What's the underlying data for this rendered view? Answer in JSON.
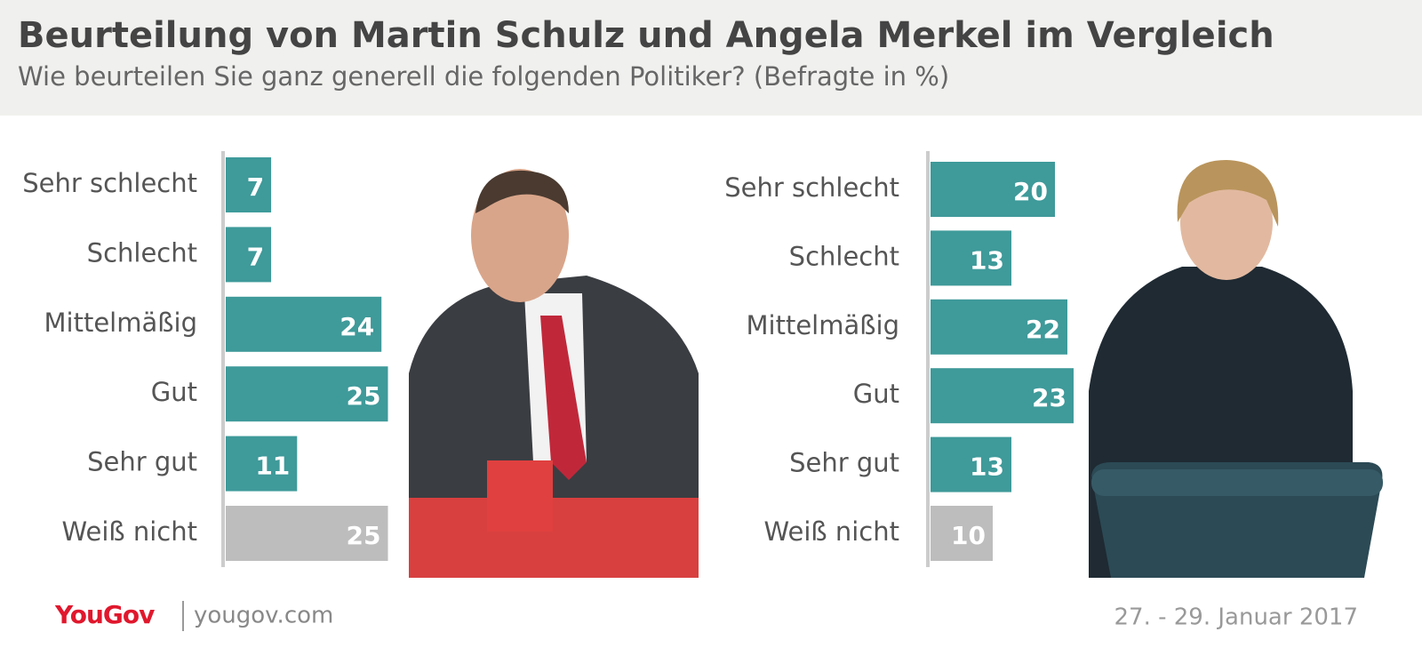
{
  "header": {
    "title": "Beurteilung von Martin Schulz und Angela Merkel im Vergleich",
    "subtitle": "Wie beurteilen Sie ganz generell die folgenden Politiker? (Befragte in %)"
  },
  "chart_data": [
    {
      "type": "bar",
      "orientation": "horizontal",
      "categories": [
        "Sehr schlecht",
        "Schlecht",
        "Mittelmäßig",
        "Gut",
        "Sehr gut",
        "Weiß nicht"
      ],
      "values": [
        7,
        7,
        24,
        25,
        11,
        25
      ],
      "colors": [
        "#3f9a9a",
        "#3f9a9a",
        "#3f9a9a",
        "#3f9a9a",
        "#3f9a9a",
        "#bdbdbd"
      ]
    },
    {
      "type": "bar",
      "orientation": "horizontal",
      "categories": [
        "Sehr schlecht",
        "Schlecht",
        "Mittelmäßig",
        "Gut",
        "Sehr gut",
        "Weiß nicht"
      ],
      "values": [
        20,
        13,
        22,
        23,
        13,
        10
      ],
      "colors": [
        "#3f9a9a",
        "#3f9a9a",
        "#3f9a9a",
        "#3f9a9a",
        "#3f9a9a",
        "#bdbdbd"
      ]
    }
  ],
  "footer": {
    "brand": "YouGov",
    "url": "yougov.com",
    "date": "27. - 29. Januar 2017"
  }
}
